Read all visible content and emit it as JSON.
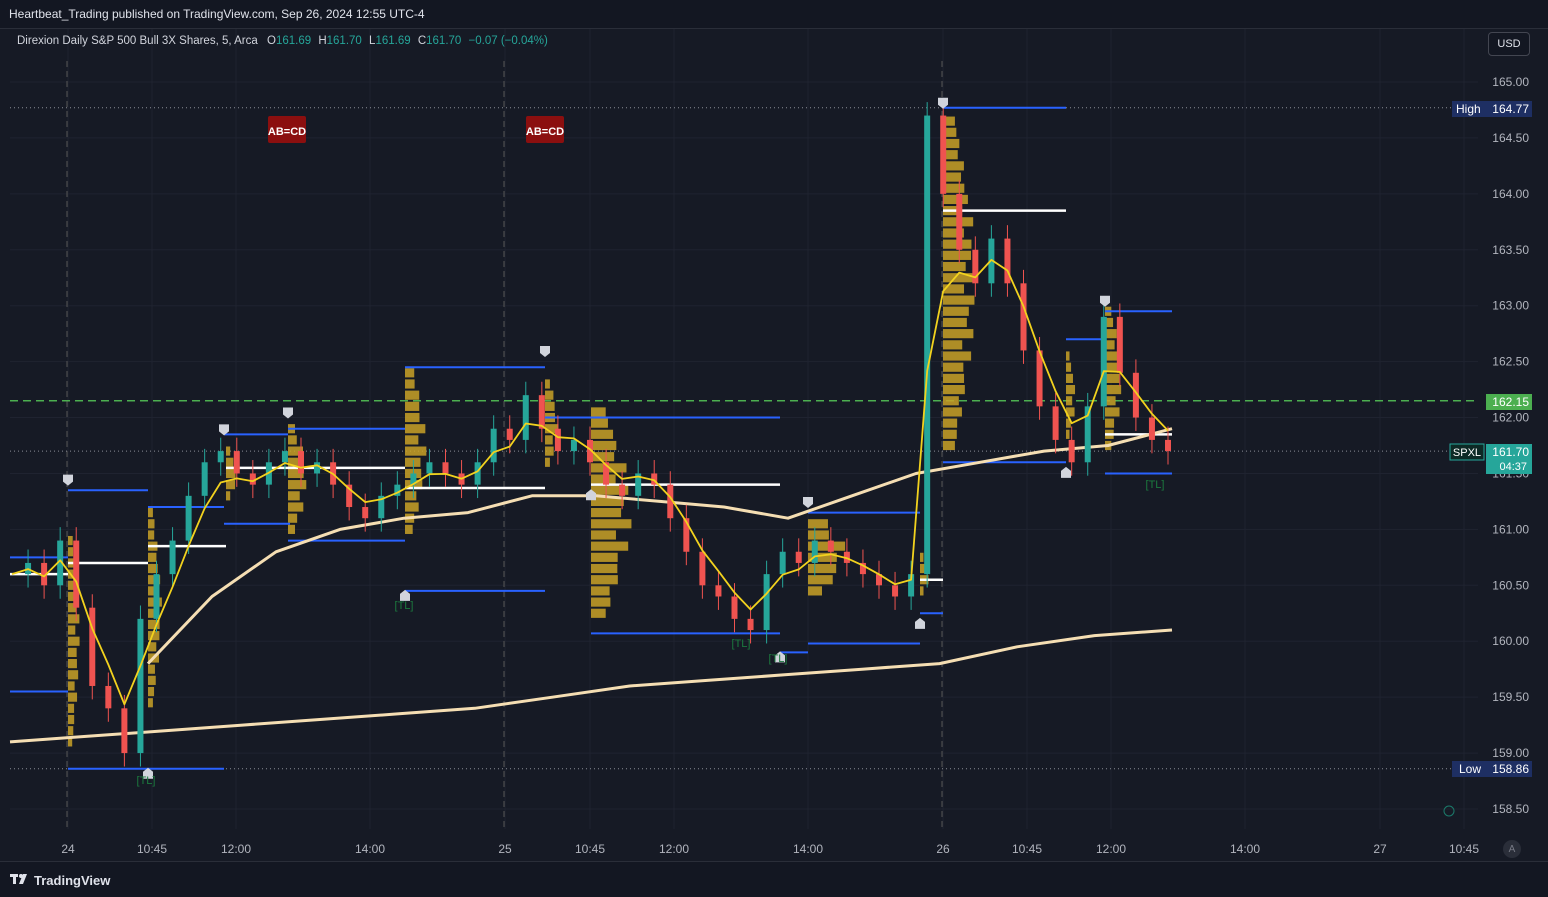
{
  "header": {
    "publisher_line": "Heartbeat_Trading published on TradingView.com, Sep 26, 2024 12:55 UTC-4"
  },
  "legend": {
    "symbol": "Direxion Daily S&P 500 Bull 3X Shares, 5, Arca",
    "open_label": "O",
    "open": "161.69",
    "high_label": "H",
    "high": "161.70",
    "low_label": "L",
    "low": "161.69",
    "close_label": "C",
    "close": "161.70",
    "change": "−0.07 (−0.04%)"
  },
  "currency_button": "USD",
  "footer": {
    "brand": "TradingView",
    "logo_icon": "tradingview-logo-icon"
  },
  "auto_label": "A",
  "colors": {
    "background": "#161a25",
    "up": "#26a69a",
    "down": "#ef5350",
    "volume_profile": "#c9a227",
    "vwap": "#f5deb3",
    "ema": "#f2d21e",
    "level_line": "#2962ff",
    "dashed_level": "#4caf50"
  },
  "chart_data": {
    "type": "line",
    "title": "",
    "y_ticks": [
      "165.00",
      "164.50",
      "164.00",
      "163.50",
      "163.00",
      "162.50",
      "162.00",
      "161.50",
      "161.00",
      "160.50",
      "160.00",
      "159.50",
      "159.00",
      "158.50"
    ],
    "x_ticks": [
      "24",
      "10:45",
      "12:00",
      "14:00",
      "25",
      "10:45",
      "12:00",
      "14:00",
      "26",
      "10:45",
      "12:00",
      "14:00",
      "27",
      "10:45"
    ],
    "ylim": [
      158.3,
      165.3
    ],
    "price_labels": [
      {
        "name": "High",
        "value": "164.77",
        "color": "#1e3a8a"
      },
      {
        "name": "162.15",
        "value": "162.15",
        "color": "#4caf50"
      },
      {
        "name": "SPXL",
        "value": "161.70",
        "timer": "04:37",
        "color": "#26a69a"
      },
      {
        "name": "Low",
        "value": "158.86",
        "color": "#1e3a8a"
      }
    ],
    "high": 164.77,
    "low": 158.86,
    "last": 161.7,
    "dashed_level": 162.15,
    "annotations": [
      {
        "text": "AB=CD",
        "x": "24 11:20"
      },
      {
        "text": "AB=CD",
        "x": "25 10:30"
      }
    ],
    "tl_labels": [
      "[TL]",
      "[TL]",
      "[TL]",
      "[TL]",
      "[TL]",
      "[TL]"
    ],
    "series": [
      {
        "name": "",
        "kind": "close_path",
        "values": [
          160.6,
          160.7,
          160.5,
          160.9,
          160.3,
          159.6,
          159.4,
          159.0,
          160.2,
          160.6,
          160.9,
          161.3,
          161.6,
          161.7,
          161.5,
          161.4,
          161.6,
          161.7,
          161.5,
          161.6,
          161.4,
          161.2,
          161.1,
          161.3,
          161.4,
          161.5,
          161.6,
          161.5,
          161.4,
          161.6,
          161.9,
          161.8,
          162.2,
          161.9,
          161.7,
          161.8,
          161.6,
          161.4,
          161.3,
          161.5,
          161.4,
          161.1,
          160.8,
          160.5,
          160.4,
          160.2,
          160.1,
          160.6,
          160.8,
          160.7,
          160.9,
          160.8,
          160.7,
          160.6,
          160.5,
          160.4,
          160.6,
          164.7,
          164.0,
          163.5,
          163.2,
          163.6,
          163.2,
          162.6,
          162.1,
          161.8,
          161.6,
          162.1,
          162.9,
          162.4,
          162.0,
          161.8,
          161.7
        ]
      },
      {
        "name": "",
        "kind": "vwap_lower",
        "values": [
          159.1,
          159.15,
          159.2,
          159.25,
          159.3,
          159.35,
          159.4,
          159.5,
          159.6,
          159.65,
          159.7,
          159.75,
          159.8,
          159.95,
          160.05,
          160.1
        ]
      },
      {
        "name": "",
        "kind": "vwap_upper",
        "values": [
          159.8,
          160.4,
          160.8,
          161.0,
          161.1,
          161.15,
          161.3,
          161.3,
          161.25,
          161.2,
          161.1,
          161.3,
          161.5,
          161.6,
          161.7,
          161.75,
          161.9
        ]
      }
    ]
  }
}
